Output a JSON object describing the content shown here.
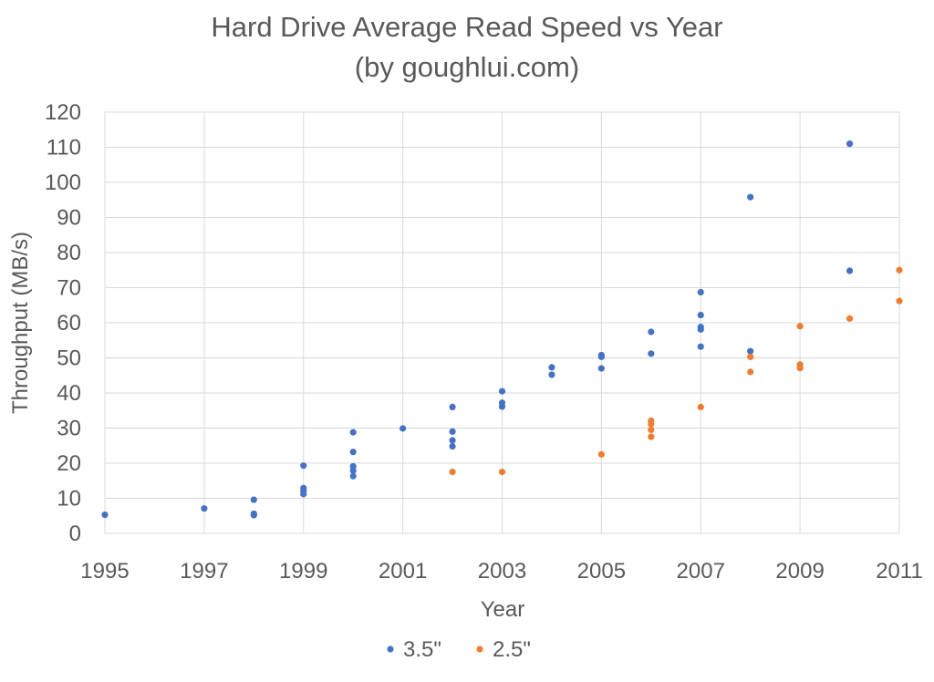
{
  "chart_data": {
    "type": "scatter",
    "title": "Hard Drive Average Read Speed vs Year",
    "subtitle": "(by goughlui.com)",
    "xlabel": "Year",
    "ylabel": "Throughput (MB/s)",
    "xlim": [
      1995,
      2011
    ],
    "ylim": [
      0,
      120
    ],
    "xticks": [
      1995,
      1997,
      1999,
      2001,
      2003,
      2005,
      2007,
      2009,
      2011
    ],
    "yticks": [
      0,
      10,
      20,
      30,
      40,
      50,
      60,
      70,
      80,
      90,
      100,
      110,
      120
    ],
    "grid": true,
    "legend_position": "bottom",
    "series": [
      {
        "name": "3.5\"",
        "color": "#4472c4",
        "points": [
          [
            1995,
            5.3
          ],
          [
            1997,
            7.1
          ],
          [
            1998,
            9.6
          ],
          [
            1998,
            5.6
          ],
          [
            1998,
            5.2
          ],
          [
            1999,
            19.3
          ],
          [
            1999,
            12.9
          ],
          [
            1999,
            12.1
          ],
          [
            1999,
            11.2
          ],
          [
            2000,
            28.8
          ],
          [
            2000,
            23.2
          ],
          [
            2000,
            19.1
          ],
          [
            2000,
            17.9
          ],
          [
            2000,
            16.3
          ],
          [
            2001,
            29.9
          ],
          [
            2002,
            36.0
          ],
          [
            2002,
            29.0
          ],
          [
            2002,
            26.5
          ],
          [
            2002,
            24.8
          ],
          [
            2003,
            40.5
          ],
          [
            2003,
            37.2
          ],
          [
            2003,
            36.1
          ],
          [
            2004,
            47.3
          ],
          [
            2004,
            45.2
          ],
          [
            2005,
            50.8
          ],
          [
            2005,
            50.3
          ],
          [
            2005,
            47.0
          ],
          [
            2006,
            57.4
          ],
          [
            2006,
            51.2
          ],
          [
            2007,
            68.7
          ],
          [
            2007,
            62.2
          ],
          [
            2007,
            58.8
          ],
          [
            2007,
            58.1
          ],
          [
            2007,
            53.2
          ],
          [
            2008,
            95.8
          ],
          [
            2008,
            51.9
          ],
          [
            2010,
            111.0
          ],
          [
            2010,
            74.8
          ]
        ]
      },
      {
        "name": "2.5\"",
        "color": "#ed7d31",
        "points": [
          [
            2002,
            17.5
          ],
          [
            2003,
            17.5
          ],
          [
            2005,
            22.5
          ],
          [
            2006,
            32.1
          ],
          [
            2006,
            31.1
          ],
          [
            2006,
            29.5
          ],
          [
            2006,
            27.5
          ],
          [
            2007,
            36.0
          ],
          [
            2008,
            50.3
          ],
          [
            2008,
            46.0
          ],
          [
            2009,
            59.0
          ],
          [
            2009,
            48.1
          ],
          [
            2009,
            47.1
          ],
          [
            2010,
            61.2
          ],
          [
            2011,
            75.0
          ],
          [
            2011,
            66.2
          ]
        ]
      }
    ]
  }
}
